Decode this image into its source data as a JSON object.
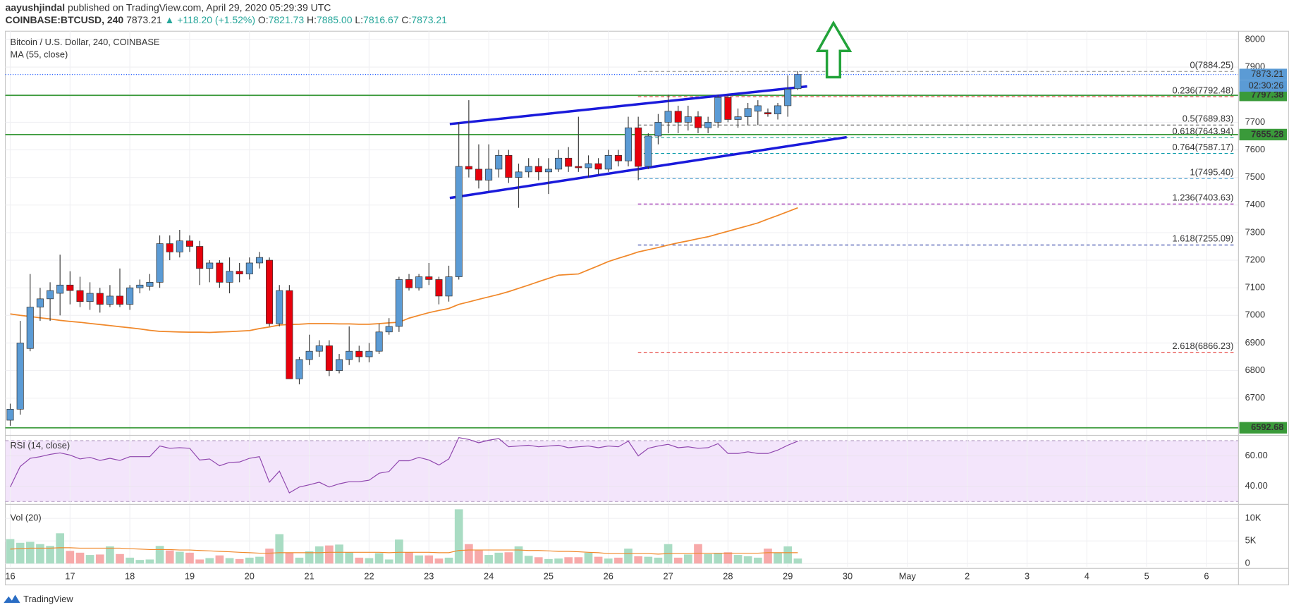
{
  "header": {
    "author": "aayushjindal",
    "published": "published on TradingView.com, April 29, 2020 05:29:39 UTC",
    "symbol": "COINBASE:BTCUSD, 240",
    "last": "7873.21",
    "change": "▲ +118.20 (+1.52%)",
    "o_label": "O:",
    "open": "7821.73",
    "h_label": "H:",
    "high": "7885.00",
    "l_label": "L:",
    "low": "7816.67",
    "c_label": "C:",
    "close": "7873.21"
  },
  "footer": {
    "brand": "TradingView"
  },
  "chart_data": {
    "type": "candlestick",
    "title": "Bitcoin / U.S. Dollar, 240, COINBASE",
    "countdown": "02:30:26",
    "x": [
      16,
      16.167,
      16.333,
      16.5,
      16.667,
      16.833,
      17,
      17.167,
      17.333,
      17.5,
      17.667,
      17.833,
      18,
      18.167,
      18.333,
      18.5,
      18.667,
      18.833,
      19,
      19.167,
      19.333,
      19.5,
      19.667,
      19.833,
      20,
      20.167,
      20.333,
      20.5,
      20.667,
      20.833,
      21,
      21.167,
      21.333,
      21.5,
      21.667,
      21.833,
      22,
      22.167,
      22.333,
      22.5,
      22.667,
      22.833,
      23,
      23.167,
      23.333,
      23.5,
      23.667,
      23.833,
      24,
      24.167,
      24.333,
      24.5,
      24.667,
      24.833,
      25,
      25.167,
      25.333,
      25.5,
      25.667,
      25.833,
      26,
      26.167,
      26.333,
      26.5,
      26.667,
      26.833,
      27,
      27.167,
      27.333,
      27.5,
      27.667,
      27.833,
      28,
      28.167,
      28.333,
      28.5,
      28.667,
      28.833,
      29,
      29.167
    ],
    "xlim": [
      15.918,
      36.535
    ],
    "xticks": [
      16,
      17,
      18,
      19,
      20,
      21,
      22,
      23,
      24,
      25,
      26,
      27,
      28,
      29,
      30,
      {
        "value": 31,
        "label": "May"
      },
      {
        "value": 32,
        "label": "2"
      },
      {
        "value": 33,
        "label": "3"
      },
      {
        "value": 34,
        "label": "4"
      },
      {
        "value": 35,
        "label": "5"
      },
      {
        "value": 36,
        "label": "6"
      }
    ],
    "open": [
      6620,
      6660,
      6880,
      7030,
      7060,
      7080,
      7110,
      7090,
      7050,
      7080,
      7040,
      7070,
      7040,
      7100,
      7105,
      7120,
      7260,
      7230,
      7270,
      7250,
      7170,
      7190,
      7120,
      7160,
      7150,
      7190,
      7200,
      6970,
      7090,
      6770,
      6840,
      6870,
      6890,
      6800,
      6840,
      6870,
      6850,
      6870,
      6940,
      6960,
      7130,
      7100,
      7140,
      7130,
      7070,
      7140,
      7540,
      7530,
      7490,
      7530,
      7580,
      7500,
      7520,
      7540,
      7520,
      7530,
      7570,
      7540,
      7535,
      7550,
      7530,
      7580,
      7560,
      7680,
      7540,
      7650,
      7700,
      7740,
      7700,
      7720,
      7680,
      7700,
      7790,
      7710,
      7720,
      7740,
      7735,
      7730,
      7760,
      7821.73
    ],
    "high": [
      6680,
      6980,
      7150,
      7100,
      7120,
      7220,
      7160,
      7140,
      7120,
      7100,
      7110,
      7170,
      7110,
      7130,
      7150,
      7290,
      7290,
      7310,
      7290,
      7270,
      7200,
      7200,
      7210,
      7190,
      7210,
      7230,
      7210,
      7110,
      7110,
      6850,
      6930,
      6910,
      6910,
      6860,
      6960,
      6890,
      6900,
      6970,
      6990,
      7140,
      7150,
      7150,
      7190,
      7140,
      7180,
      7700,
      7780,
      7620,
      7620,
      7600,
      7600,
      7550,
      7570,
      7570,
      7570,
      7600,
      7610,
      7720,
      7580,
      7570,
      7600,
      7600,
      7720,
      7720,
      7660,
      7730,
      7800,
      7760,
      7760,
      7740,
      7720,
      7800,
      7800,
      7750,
      7770,
      7780,
      7750,
      7770,
      7870,
      7885
    ],
    "low": [
      6600,
      6640,
      6870,
      6980,
      6980,
      7000,
      7040,
      7030,
      7020,
      7010,
      7030,
      7030,
      7020,
      7080,
      7090,
      7100,
      7200,
      7210,
      7230,
      7110,
      7120,
      7100,
      7080,
      7120,
      7130,
      7170,
      6960,
      6960,
      6770,
      6750,
      6820,
      6850,
      6780,
      6790,
      6820,
      6830,
      6830,
      6860,
      6930,
      6940,
      7090,
      7090,
      7110,
      7040,
      7050,
      7130,
      7500,
      7460,
      7450,
      7500,
      7480,
      7390,
      7500,
      7490,
      7440,
      7520,
      7520,
      7520,
      7500,
      7510,
      7520,
      7540,
      7540,
      7490,
      7530,
      7620,
      7660,
      7660,
      7670,
      7660,
      7660,
      7680,
      7700,
      7680,
      7690,
      7690,
      7720,
      7710,
      7720,
      7816.67
    ],
    "close": [
      6660,
      6900,
      7030,
      7060,
      7090,
      7110,
      7090,
      7050,
      7080,
      7040,
      7070,
      7040,
      7100,
      7110,
      7120,
      7260,
      7230,
      7270,
      7250,
      7170,
      7190,
      7120,
      7160,
      7150,
      7190,
      7210,
      6970,
      7090,
      6770,
      6840,
      6870,
      6890,
      6800,
      6840,
      6870,
      6850,
      6870,
      6940,
      6960,
      7130,
      7100,
      7140,
      7130,
      7070,
      7140,
      7540,
      7530,
      7490,
      7530,
      7580,
      7500,
      7520,
      7540,
      7520,
      7530,
      7570,
      7540,
      7535,
      7550,
      7530,
      7580,
      7560,
      7680,
      7540,
      7650,
      7700,
      7740,
      7700,
      7720,
      7680,
      7700,
      7790,
      7710,
      7720,
      7750,
      7760,
      7730,
      7760,
      7820,
      7873.21
    ],
    "up_color": "#5b9bd5",
    "down_color": "#e8000b",
    "wick_color": "#3a3a3a",
    "ylim": [
      6571,
      8030
    ],
    "yticks": [
      6700,
      6800,
      6900,
      7000,
      7100,
      7200,
      7300,
      7400,
      7500,
      7600,
      7700,
      7800,
      7900,
      8000
    ],
    "grid": true,
    "ma": {
      "name": "MA (55, close)",
      "color": "#f0882a",
      "values": [
        7005,
        7000,
        6996,
        6991,
        6987,
        6982,
        6978,
        6975,
        6971,
        6967,
        6963,
        6959,
        6955,
        6951,
        6946,
        6942,
        6941,
        6940,
        6939,
        6939,
        6938,
        6940,
        6941,
        6943,
        6945,
        6952,
        6958,
        6965,
        6967,
        6968,
        6970,
        6970,
        6970,
        6969,
        6969,
        6968,
        6968,
        6970,
        6973,
        6975,
        6990,
        7000,
        7010,
        7018,
        7025,
        7040,
        7049,
        7058,
        7067,
        7076,
        7086,
        7098,
        7110,
        7122,
        7134,
        7146,
        7148,
        7150,
        7165,
        7180,
        7195,
        7207,
        7218,
        7230,
        7238,
        7246,
        7255,
        7263,
        7270,
        7278,
        7285,
        7295,
        7305,
        7315,
        7325,
        7335,
        7349,
        7362,
        7376,
        7390
      ]
    },
    "hlines": [
      7797.38,
      7655.28,
      6592.68
    ],
    "hline_color": "#3a9a3a",
    "last_line_color": "#2962ff",
    "trendlines": [
      {
        "x": [
          23.349,
          29.324
        ],
        "y": [
          7693.5,
          7830
        ],
        "color": "#1a1adb"
      },
      {
        "x": [
          23.349,
          29.984
        ],
        "y": [
          7425.6,
          7645.8
        ],
        "color": "#1a1adb"
      }
    ],
    "fib_start": 26.495,
    "fib_levels": [
      {
        "value": 7884.25,
        "label": "0(7884.25)",
        "color": "#999999"
      },
      {
        "value": 7792.48,
        "label": "0.236(7792.48)",
        "color": "#e53935"
      },
      {
        "value": 7689.83,
        "label": "0.5(7689.83)",
        "color": "#666666"
      },
      {
        "value": 7643.94,
        "label": "0.618(7643.94)",
        "color": "#26a69a"
      },
      {
        "value": 7587.17,
        "label": "0.764(7587.17)",
        "color": "#0097a7"
      },
      {
        "value": 7495.4,
        "label": "1(7495.40)",
        "color": "#5fa8d3"
      },
      {
        "value": 7403.63,
        "label": "1.236(7403.63)",
        "color": "#9c27b0"
      },
      {
        "value": 7255.09,
        "label": "1.618(7255.09)",
        "color": "#3949ab"
      },
      {
        "value": 6866.23,
        "label": "2.618(6866.23)",
        "color": "#e53935"
      }
    ],
    "rsi": {
      "name": "RSI (14, close)",
      "color": "#8e44ad",
      "band": [
        30,
        70
      ],
      "band_color": "#f3e5fb",
      "ylim": [
        29.2,
        72.4
      ],
      "yticks": [
        {
          "value": 40,
          "label": "40.00"
        },
        {
          "value": 60,
          "label": "60.00"
        }
      ],
      "values": [
        39.5,
        53,
        58.4,
        59.5,
        61,
        62,
        60.5,
        58,
        59,
        57,
        58.4,
        57,
        59.5,
        59.5,
        59.5,
        66.5,
        65,
        65.4,
        65,
        57.3,
        58,
        53.5,
        55.7,
        56,
        58.4,
        59.5,
        42.7,
        50,
        35.7,
        39.5,
        41,
        42.7,
        39.5,
        41.6,
        43,
        43,
        44,
        48.6,
        49.7,
        56.8,
        56.8,
        59,
        57.3,
        54,
        58,
        72,
        70.8,
        68.6,
        70.3,
        71.4,
        66,
        66.5,
        67,
        66,
        66.5,
        67,
        65.4,
        66,
        66.5,
        65.4,
        66.5,
        66,
        69.7,
        60,
        65,
        66.5,
        67.6,
        65.4,
        66,
        65,
        65.4,
        68,
        61.6,
        61.6,
        62.7,
        61.6,
        61.6,
        63.8,
        67,
        69.7
      ]
    },
    "volume": {
      "name": "Vol (20)",
      "up_color": "#a9dcc3",
      "down_color": "#f7a9a9",
      "ma_color": "#f0882a",
      "ylim": [
        -727,
        12727
      ],
      "yticks": [
        0,
        {
          "value": 5000,
          "label": "5K"
        },
        {
          "value": 10000,
          "label": "10K"
        }
      ],
      "values": [
        5400,
        4600,
        4800,
        4300,
        3900,
        6700,
        2800,
        2400,
        1900,
        2000,
        3800,
        2100,
        1300,
        800,
        900,
        3900,
        2900,
        2600,
        2400,
        900,
        1200,
        1800,
        1200,
        1000,
        1300,
        1500,
        3300,
        6500,
        2400,
        1300,
        2700,
        3800,
        4000,
        4200,
        2500,
        1300,
        1200,
        2300,
        900,
        5300,
        2500,
        1800,
        1800,
        1100,
        1300,
        12000,
        4300,
        2900,
        1900,
        2400,
        2500,
        3800,
        1700,
        1400,
        1000,
        1100,
        1400,
        1400,
        2400,
        1500,
        1100,
        1300,
        3300,
        1600,
        1500,
        1300,
        4300,
        1300,
        2000,
        4300,
        2100,
        2300,
        2500,
        1900,
        1600,
        1300,
        3300,
        2300,
        3800,
        1100
      ],
      "ma_values": [
        3200,
        3300,
        3400,
        3400,
        3400,
        3500,
        3500,
        3400,
        3400,
        3400,
        3400,
        3400,
        3300,
        3200,
        3100,
        3100,
        3100,
        3000,
        3000,
        2900,
        2800,
        2700,
        2600,
        2500,
        2400,
        2300,
        2300,
        2400,
        2400,
        2400,
        2400,
        2400,
        2500,
        2500,
        2500,
        2500,
        2500,
        2500,
        2400,
        2500,
        2500,
        2500,
        2500,
        2400,
        2400,
        2900,
        3000,
        3000,
        3000,
        3000,
        3000,
        3000,
        2900,
        2900,
        2800,
        2700,
        2700,
        2600,
        2500,
        2400,
        2200,
        2200,
        2200,
        2200,
        2200,
        2100,
        2200,
        2200,
        2200,
        2300,
        2300,
        2300,
        2300,
        2300,
        2300,
        2300,
        2400,
        2400,
        2400,
        2400
      ]
    }
  }
}
